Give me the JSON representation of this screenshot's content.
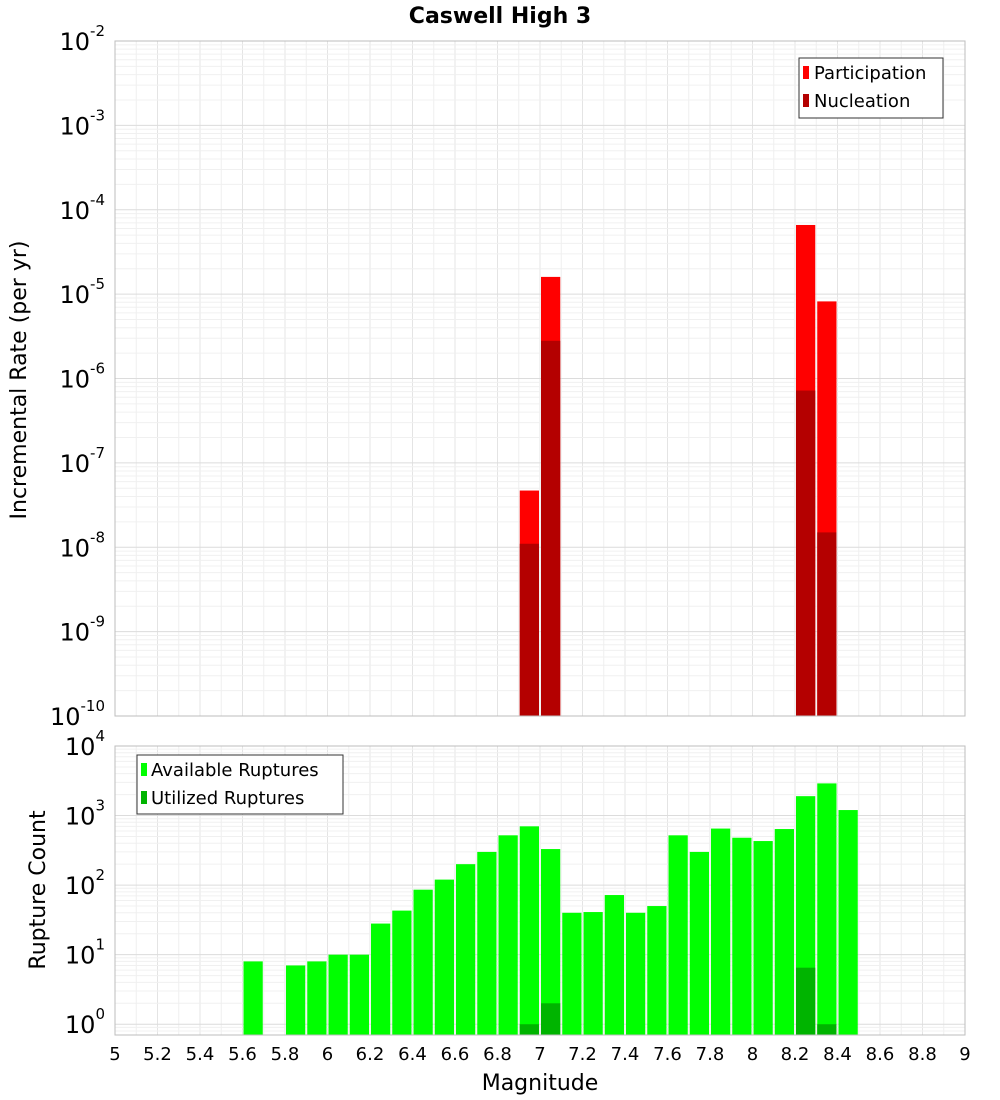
{
  "chart_data": [
    {
      "type": "bar",
      "title": "Caswell High 3",
      "xlabel": "Magnitude",
      "ylabel": "Incremental Rate (per yr)",
      "yscale": "log",
      "ylim": [
        1e-10,
        0.01
      ],
      "xlim": [
        5,
        9
      ],
      "bin_width": 0.1,
      "legend_position": "top-right",
      "grid": true,
      "x_ticks": [
        "5",
        "5.2",
        "5.4",
        "5.6",
        "5.8",
        "6",
        "6.2",
        "6.4",
        "6.6",
        "6.8",
        "7",
        "7.2",
        "7.4",
        "7.6",
        "7.8",
        "8",
        "8.2",
        "8.4",
        "8.6",
        "8.8",
        "9"
      ],
      "y_ticks": [
        {
          "base": "10",
          "exp": "-10",
          "value": 1e-10
        },
        {
          "base": "10",
          "exp": "-9",
          "value": 1e-09
        },
        {
          "base": "10",
          "exp": "-8",
          "value": 1e-08
        },
        {
          "base": "10",
          "exp": "-7",
          "value": 1e-07
        },
        {
          "base": "10",
          "exp": "-6",
          "value": 1e-06
        },
        {
          "base": "10",
          "exp": "-5",
          "value": 1e-05
        },
        {
          "base": "10",
          "exp": "-4",
          "value": 0.0001
        },
        {
          "base": "10",
          "exp": "-3",
          "value": 0.001
        },
        {
          "base": "10",
          "exp": "-2",
          "value": 0.01
        }
      ],
      "series": [
        {
          "name": "Participation",
          "color": "#ff0000",
          "x": [
            6.95,
            7.05,
            8.25,
            8.35
          ],
          "values": [
            4.7e-08,
            1.6e-05,
            6.6e-05,
            8.2e-06
          ]
        },
        {
          "name": "Nucleation",
          "color": "#b40000",
          "x": [
            6.95,
            7.05,
            8.25,
            8.35
          ],
          "values": [
            1.1e-08,
            2.8e-06,
            7.2e-07,
            1.5e-08
          ]
        }
      ]
    },
    {
      "type": "bar",
      "title": "",
      "xlabel": "Magnitude",
      "ylabel": "Rupture Count",
      "yscale": "log",
      "ylim": [
        0.7,
        10000
      ],
      "xlim": [
        5,
        9
      ],
      "bin_width": 0.1,
      "legend_position": "top-left",
      "grid": true,
      "y_ticks": [
        {
          "base": "10",
          "exp": "0",
          "value": 1
        },
        {
          "base": "10",
          "exp": "1",
          "value": 10
        },
        {
          "base": "10",
          "exp": "2",
          "value": 100
        },
        {
          "base": "10",
          "exp": "3",
          "value": 1000
        },
        {
          "base": "10",
          "exp": "4",
          "value": 10000
        }
      ],
      "series": [
        {
          "name": "Available Ruptures",
          "color": "#00ff00",
          "x": [
            5.65,
            5.85,
            5.95,
            6.05,
            6.15,
            6.25,
            6.35,
            6.45,
            6.55,
            6.65,
            6.75,
            6.85,
            6.95,
            7.05,
            7.15,
            7.25,
            7.35,
            7.45,
            7.55,
            7.65,
            7.75,
            7.85,
            7.95,
            8.05,
            8.15,
            8.25,
            8.35,
            8.45
          ],
          "values": [
            8,
            7,
            8,
            10,
            10,
            28,
            43,
            86,
            120,
            200,
            300,
            520,
            700,
            330,
            40,
            41,
            72,
            40,
            50,
            520,
            300,
            650,
            480,
            430,
            640,
            1900,
            2900,
            1200
          ]
        },
        {
          "name": "Utilized Ruptures",
          "color": "#00b400",
          "x": [
            6.95,
            7.05,
            8.25,
            8.35
          ],
          "values": [
            1,
            2,
            6.5,
            1
          ]
        }
      ]
    }
  ]
}
